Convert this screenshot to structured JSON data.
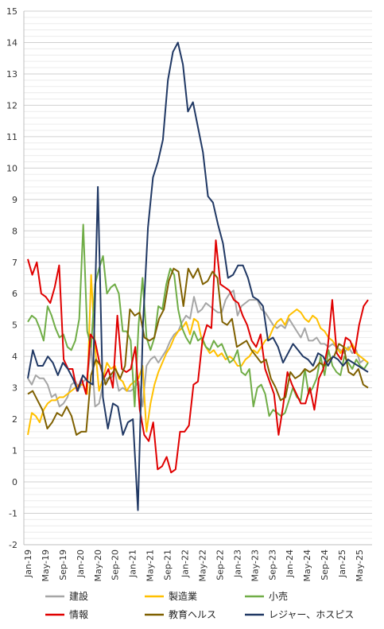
{
  "chart_data": {
    "type": "line",
    "ylim": [
      -2,
      15
    ],
    "y_ticks": [
      "-2",
      "-1",
      "0",
      "1",
      "2",
      "3",
      "4",
      "5",
      "6",
      "7",
      "8",
      "9",
      "10",
      "11",
      "12",
      "13",
      "14",
      "15"
    ],
    "x_labels": [
      "Jan-19",
      "May-19",
      "Sep-19",
      "Jan-20",
      "May-20",
      "Sep-20",
      "Jan-21",
      "May-21",
      "Sep-21",
      "Jan-22",
      "May-22",
      "Sep-22",
      "Jan-23",
      "May-23",
      "Sep-23",
      "Jan-24",
      "May-24",
      "Sep-24",
      "Jan-25",
      "May-25"
    ],
    "grid": true,
    "legend_position": "bottom",
    "series": [
      {
        "name": "建設",
        "color": "#a6a6a6",
        "values": [
          3.3,
          3.1,
          3.4,
          3.3,
          3.3,
          3.1,
          2.7,
          2.8,
          2.4,
          2.5,
          2.7,
          3.1,
          3.2,
          3.0,
          3.2,
          3.3,
          4.3,
          2.4,
          2.5,
          3.1,
          3.3,
          3.3,
          3.5,
          2.9,
          3.0,
          2.9,
          2.9,
          3.0,
          3.2,
          2.4,
          3.7,
          3.9,
          4.0,
          3.8,
          4.0,
          4.2,
          4.5,
          4.7,
          4.8,
          5.1,
          5.3,
          5.2,
          5.9,
          5.4,
          5.5,
          5.7,
          5.6,
          5.5,
          5.4,
          5.4,
          5.8,
          6.0,
          6.1,
          5.3,
          5.6,
          5.7,
          5.8,
          5.8,
          5.8,
          5.5,
          5.4,
          5.2,
          5.0,
          4.9,
          5.0,
          4.9,
          5.2,
          5.0,
          4.8,
          4.6,
          4.9,
          4.5,
          4.5,
          4.6,
          4.4,
          4.4,
          4.3,
          4.4,
          4.3,
          4.2,
          4.1,
          4.3,
          4.1,
          4.2,
          3.8,
          3.9,
          3.8
        ]
      },
      {
        "name": "製造業",
        "color": "#ffc000",
        "values": [
          1.5,
          2.2,
          2.1,
          1.9,
          2.3,
          2.5,
          2.6,
          2.6,
          2.7,
          2.7,
          2.8,
          2.9,
          3.0,
          3.1,
          3.1,
          2.8,
          6.6,
          4.3,
          2.9,
          3.3,
          3.8,
          3.6,
          3.7,
          3.3,
          3.2,
          2.9,
          3.1,
          3.2,
          3.3,
          3.7,
          1.6,
          2.5,
          3.1,
          3.5,
          3.8,
          4.1,
          4.3,
          4.6,
          4.8,
          4.9,
          5.1,
          4.7,
          5.2,
          5.1,
          4.5,
          4.3,
          4.1,
          4.2,
          4.0,
          4.1,
          3.9,
          4.0,
          3.9,
          3.7,
          3.7,
          3.9,
          4.0,
          4.2,
          4.1,
          4.3,
          4.5,
          4.6,
          4.9,
          5.1,
          5.2,
          5.0,
          5.3,
          5.4,
          5.5,
          5.4,
          5.2,
          5.1,
          5.3,
          5.2,
          4.9,
          4.8,
          4.6,
          4.5,
          4.3,
          4.1,
          4.3,
          4.2,
          4.4,
          4.1,
          4.0,
          3.9,
          3.8
        ]
      },
      {
        "name": "小売",
        "color": "#70ad47",
        "values": [
          5.1,
          5.3,
          5.2,
          4.9,
          4.5,
          5.6,
          5.3,
          4.9,
          4.6,
          4.7,
          4.3,
          4.2,
          4.5,
          5.2,
          8.2,
          4.8,
          4.3,
          6.3,
          6.8,
          7.2,
          6.0,
          6.2,
          6.3,
          6.0,
          4.8,
          4.8,
          4.5,
          2.4,
          5.0,
          6.5,
          4.6,
          4.2,
          4.6,
          5.6,
          5.5,
          6.3,
          6.8,
          6.6,
          5.5,
          4.9,
          4.6,
          4.4,
          4.8,
          4.5,
          4.6,
          4.3,
          4.2,
          4.5,
          4.3,
          4.4,
          4.1,
          3.8,
          3.9,
          4.2,
          3.5,
          3.4,
          3.6,
          2.4,
          3.0,
          3.1,
          2.8,
          2.1,
          2.3,
          2.2,
          2.1,
          2.2,
          2.6,
          3.0,
          2.7,
          2.6,
          3.6,
          2.8,
          3.0,
          3.3,
          4.0,
          3.4,
          4.2,
          3.7,
          3.5,
          3.4,
          4.0,
          3.8,
          3.6,
          3.9,
          3.7,
          3.6,
          3.8
        ]
      },
      {
        "name": "情報",
        "color": "#e00000",
        "values": [
          7.1,
          6.6,
          7.0,
          6.0,
          5.9,
          5.7,
          6.2,
          6.9,
          3.9,
          3.6,
          3.6,
          2.9,
          3.3,
          2.8,
          4.7,
          4.5,
          3.8,
          3.3,
          3.6,
          3.0,
          5.3,
          3.6,
          3.5,
          3.6,
          4.3,
          2.3,
          1.5,
          1.3,
          1.9,
          0.4,
          0.5,
          0.8,
          0.3,
          0.4,
          1.6,
          1.6,
          1.8,
          3.1,
          3.2,
          4.5,
          5.0,
          4.9,
          7.7,
          6.3,
          6.2,
          6.1,
          5.8,
          5.7,
          5.3,
          5.0,
          4.5,
          4.3,
          4.7,
          3.6,
          3.2,
          2.8,
          1.5,
          2.4,
          3.5,
          3.1,
          2.8,
          2.5,
          2.5,
          3.0,
          2.3,
          3.3,
          3.6,
          4.3,
          5.8,
          4.1,
          3.9,
          4.6,
          4.5,
          4.1,
          5.0,
          5.6,
          5.8
        ]
      },
      {
        "name": "教育ヘルス",
        "color": "#7f6000",
        "values": [
          2.8,
          2.9,
          2.6,
          2.3,
          1.7,
          1.9,
          2.2,
          2.1,
          2.4,
          2.1,
          1.5,
          1.6,
          1.6,
          3.4,
          3.9,
          3.7,
          3.1,
          3.4,
          3.6,
          3.3,
          3.7,
          5.5,
          5.3,
          5.4,
          4.6,
          4.5,
          4.6,
          5.2,
          5.5,
          6.4,
          6.8,
          6.7,
          5.6,
          6.8,
          6.5,
          6.8,
          6.3,
          6.4,
          6.7,
          6.5,
          5.1,
          5.0,
          5.2,
          4.3,
          4.4,
          4.5,
          4.2,
          4.0,
          3.8,
          3.9,
          3.3,
          3.0,
          2.6,
          2.7,
          3.5,
          3.3,
          3.4,
          3.6,
          3.5,
          3.6,
          3.8,
          3.7,
          3.9,
          4.0,
          4.4,
          4.3,
          3.5,
          3.4,
          3.6,
          3.1,
          3.0
        ]
      },
      {
        "name": "レジャー、ホスピス",
        "color": "#203864",
        "values": [
          3.3,
          4.2,
          3.7,
          3.7,
          4.0,
          3.8,
          3.4,
          3.8,
          3.6,
          3.3,
          2.9,
          3.4,
          3.2,
          3.1,
          9.4,
          2.7,
          1.7,
          2.5,
          2.4,
          1.5,
          1.9,
          2.0,
          -0.9,
          5.0,
          8.1,
          9.7,
          10.2,
          10.9,
          12.8,
          13.7,
          14.0,
          13.3,
          11.8,
          12.1,
          11.3,
          10.5,
          9.1,
          8.9,
          8.2,
          7.6,
          6.5,
          6.6,
          6.9,
          6.9,
          6.5,
          5.9,
          5.8,
          5.6,
          4.5,
          4.6,
          4.3,
          3.8,
          4.1,
          4.4,
          4.2,
          4.0,
          3.9,
          3.7,
          4.1,
          4.0,
          3.7,
          4.0,
          3.9,
          3.7,
          3.9,
          3.8,
          3.7,
          3.6,
          3.5
        ]
      }
    ]
  }
}
